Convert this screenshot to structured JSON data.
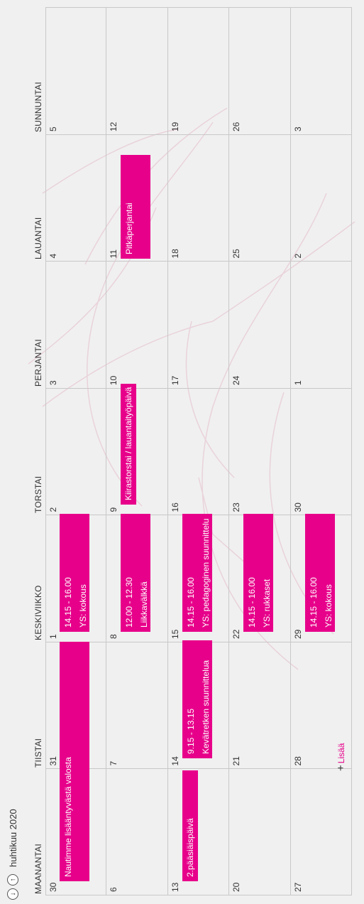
{
  "nav": {
    "prev_icon": "arrow-down-circle-icon",
    "next_icon": "arrow-up-circle-icon",
    "month": "huhtikuu 2020"
  },
  "day_headers": [
    "MAANANTAI",
    "TIISTAI",
    "KESKIVIIKKO",
    "TORSTAI",
    "PERJANTAI",
    "LAUANTAI",
    "SUNNUNTAI"
  ],
  "weeks": [
    [
      "30",
      "31",
      "1",
      "2",
      "3",
      "4",
      "5"
    ],
    [
      "6",
      "7",
      "8",
      "9",
      "10",
      "11",
      "12"
    ],
    [
      "13",
      "14",
      "15",
      "16",
      "17",
      "18",
      "19"
    ],
    [
      "20",
      "21",
      "22",
      "23",
      "24",
      "25",
      "26"
    ],
    [
      "27",
      "28",
      "29",
      "30",
      "1",
      "2",
      "3"
    ]
  ],
  "events": [
    {
      "title": "Nautimme lisääntyvästä valosta"
    },
    {
      "time": "14.15 - 16.00",
      "title": "YS: kokous"
    },
    {
      "time": "12.00 - 12.30",
      "title": "Liikkavälkkä"
    },
    {
      "title": "Kiirastorstai / lauantaityöpäivä"
    },
    {
      "title": "Pitkäperjantai"
    },
    {
      "title": "2.pääsiäispäivä"
    },
    {
      "time": "9.15 - 13.15",
      "title": "Kevätretken suunnittelua"
    },
    {
      "time": "14.15 - 16.00",
      "title": "YS: pedagoginen suunnittelu"
    },
    {
      "time": "14.15 - 16.00",
      "title": "YS: rukkaset"
    },
    {
      "time": "14.15 - 16.00",
      "title": "YS: kokous"
    }
  ],
  "add_label": "Lisää",
  "colors": {
    "accent": "#e7008a",
    "background": "#f0f0f0",
    "gridline": "#c8c8c8"
  }
}
